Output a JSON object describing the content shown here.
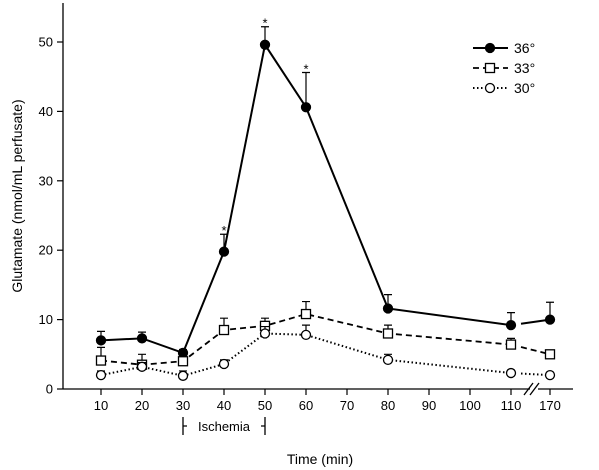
{
  "chart_data": {
    "type": "line",
    "xlabel": "Time (min)",
    "ylabel": "Glutamate (nmol/mL perfusate)",
    "x": [
      10,
      20,
      30,
      40,
      50,
      60,
      80,
      110,
      170
    ],
    "x_tick_labels": [
      "10",
      "20",
      "30",
      "40",
      "50",
      "60",
      "70",
      "80",
      "90",
      "100",
      "110",
      "170"
    ],
    "x_axis_break": "between 110 and 170",
    "y_ticks": [
      "0",
      "10",
      "20",
      "30",
      "40",
      "50"
    ],
    "ylim": [
      0,
      55
    ],
    "grid": false,
    "legend_position": "top-right",
    "series": [
      {
        "name": "36°",
        "marker": "filled-circle",
        "line_style": "solid",
        "values": [
          7,
          7.3,
          5.2,
          19.8,
          49.6,
          40.6,
          11.6,
          9.2,
          10
        ],
        "error": [
          1.3,
          0.9,
          0.5,
          2.5,
          2.6,
          5,
          2,
          1.8,
          2.5
        ]
      },
      {
        "name": "33°",
        "marker": "open-square",
        "line_style": "dashed",
        "values": [
          4.1,
          3.5,
          4,
          8.5,
          9.1,
          10.8,
          8,
          6.4,
          5
        ],
        "error": [
          1.9,
          1.5,
          0.9,
          1.7,
          1.1,
          1.8,
          1.2,
          0.9,
          0.5
        ]
      },
      {
        "name": "30°",
        "marker": "open-circle",
        "line_style": "dotted",
        "values": [
          2,
          3.2,
          1.9,
          3.6,
          8,
          7.8,
          4.2,
          2.3,
          2
        ],
        "error": [
          0.6,
          0.6,
          0.7,
          0.6,
          1,
          1.4,
          0.8,
          0.4,
          0.4
        ]
      }
    ],
    "significance_markers": [
      {
        "series": "36°",
        "x": 40,
        "label": "*"
      },
      {
        "series": "36°",
        "x": 50,
        "label": "*"
      },
      {
        "series": "36°",
        "x": 60,
        "label": "*"
      }
    ],
    "annotations": [
      {
        "text": "Ischemia",
        "from_x": 30,
        "to_x": 50
      }
    ]
  }
}
